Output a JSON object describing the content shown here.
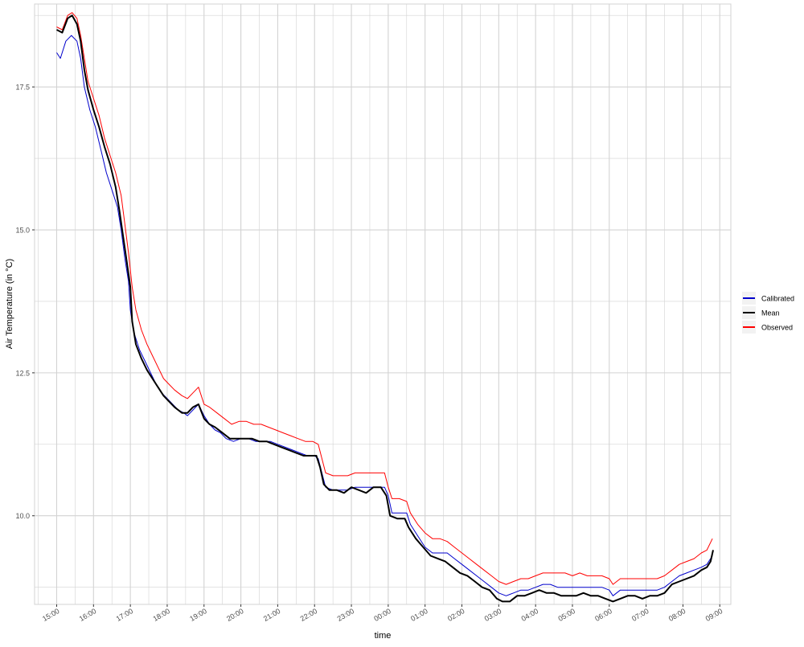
{
  "chart_data": {
    "type": "line",
    "title": "",
    "xlabel": "time",
    "ylabel": "Air Temperature (in °C)",
    "x_ticks": [
      "15:00",
      "16:00",
      "17:00",
      "18:00",
      "19:00",
      "20:00",
      "21:00",
      "22:00",
      "23:00",
      "00:00",
      "01:00",
      "02:00",
      "03:00",
      "04:00",
      "05:00",
      "06:00",
      "07:00",
      "08:00",
      "09:00"
    ],
    "x_range_hours": [
      -0.6,
      18.3
    ],
    "y_ticks": [
      10.0,
      12.5,
      15.0,
      17.5
    ],
    "y_tick_labels": [
      "10.0",
      "12.5",
      "15.0",
      "17.5"
    ],
    "ylim": [
      8.45,
      18.95
    ],
    "grid": true,
    "legend_position": "right",
    "colors": {
      "Calibrated": "#0000cc",
      "Mean": "#000000",
      "Observed": "#ff0000",
      "grid": "#d3d3d3",
      "axis_text": "#4d4d4d"
    },
    "series": [
      {
        "name": "Calibrated",
        "color": "#0000cc",
        "points": [
          [
            0.0,
            18.1
          ],
          [
            0.1,
            18.0
          ],
          [
            0.25,
            18.3
          ],
          [
            0.4,
            18.4
          ],
          [
            0.55,
            18.3
          ],
          [
            0.65,
            18.0
          ],
          [
            0.75,
            17.5
          ],
          [
            0.9,
            17.1
          ],
          [
            1.05,
            16.8
          ],
          [
            1.2,
            16.4
          ],
          [
            1.35,
            16.0
          ],
          [
            1.5,
            15.7
          ],
          [
            1.65,
            15.4
          ],
          [
            1.75,
            15.0
          ],
          [
            1.85,
            14.5
          ],
          [
            1.95,
            14.1
          ],
          [
            2.0,
            13.6
          ],
          [
            2.1,
            13.2
          ],
          [
            2.25,
            12.9
          ],
          [
            2.4,
            12.7
          ],
          [
            2.55,
            12.5
          ],
          [
            2.7,
            12.3
          ],
          [
            2.85,
            12.15
          ],
          [
            3.0,
            12.05
          ],
          [
            3.15,
            11.95
          ],
          [
            3.3,
            11.85
          ],
          [
            3.45,
            11.8
          ],
          [
            3.55,
            11.75
          ],
          [
            3.7,
            11.85
          ],
          [
            3.85,
            11.95
          ],
          [
            4.0,
            11.75
          ],
          [
            4.15,
            11.6
          ],
          [
            4.3,
            11.5
          ],
          [
            4.45,
            11.45
          ],
          [
            4.6,
            11.35
          ],
          [
            4.8,
            11.3
          ],
          [
            5.0,
            11.35
          ],
          [
            5.2,
            11.35
          ],
          [
            5.4,
            11.3
          ],
          [
            5.6,
            11.3
          ],
          [
            5.8,
            11.3
          ],
          [
            6.0,
            11.25
          ],
          [
            6.2,
            11.2
          ],
          [
            6.4,
            11.15
          ],
          [
            6.6,
            11.1
          ],
          [
            6.8,
            11.05
          ],
          [
            7.0,
            11.05
          ],
          [
            7.1,
            11.0
          ],
          [
            7.2,
            10.75
          ],
          [
            7.3,
            10.5
          ],
          [
            7.5,
            10.45
          ],
          [
            7.7,
            10.45
          ],
          [
            7.9,
            10.45
          ],
          [
            8.1,
            10.5
          ],
          [
            8.3,
            10.5
          ],
          [
            8.5,
            10.5
          ],
          [
            8.7,
            10.5
          ],
          [
            8.9,
            10.5
          ],
          [
            9.0,
            10.35
          ],
          [
            9.1,
            10.05
          ],
          [
            9.3,
            10.05
          ],
          [
            9.5,
            10.05
          ],
          [
            9.6,
            9.85
          ],
          [
            9.8,
            9.65
          ],
          [
            10.0,
            9.45
          ],
          [
            10.2,
            9.35
          ],
          [
            10.4,
            9.35
          ],
          [
            10.6,
            9.35
          ],
          [
            10.8,
            9.25
          ],
          [
            11.0,
            9.15
          ],
          [
            11.2,
            9.05
          ],
          [
            11.4,
            8.95
          ],
          [
            11.6,
            8.85
          ],
          [
            11.8,
            8.75
          ],
          [
            12.0,
            8.65
          ],
          [
            12.2,
            8.6
          ],
          [
            12.4,
            8.65
          ],
          [
            12.6,
            8.7
          ],
          [
            12.8,
            8.7
          ],
          [
            13.0,
            8.75
          ],
          [
            13.2,
            8.8
          ],
          [
            13.4,
            8.8
          ],
          [
            13.6,
            8.75
          ],
          [
            13.8,
            8.75
          ],
          [
            14.0,
            8.75
          ],
          [
            14.2,
            8.75
          ],
          [
            14.4,
            8.75
          ],
          [
            14.6,
            8.75
          ],
          [
            14.8,
            8.75
          ],
          [
            15.0,
            8.7
          ],
          [
            15.1,
            8.6
          ],
          [
            15.3,
            8.7
          ],
          [
            15.5,
            8.7
          ],
          [
            15.7,
            8.7
          ],
          [
            15.9,
            8.7
          ],
          [
            16.1,
            8.7
          ],
          [
            16.3,
            8.7
          ],
          [
            16.5,
            8.75
          ],
          [
            16.7,
            8.85
          ],
          [
            16.9,
            8.95
          ],
          [
            17.1,
            9.0
          ],
          [
            17.3,
            9.05
          ],
          [
            17.5,
            9.1
          ],
          [
            17.65,
            9.15
          ],
          [
            17.8,
            9.3
          ]
        ]
      },
      {
        "name": "Mean",
        "color": "#000000",
        "points": [
          [
            0.0,
            18.5
          ],
          [
            0.15,
            18.45
          ],
          [
            0.3,
            18.7
          ],
          [
            0.42,
            18.75
          ],
          [
            0.55,
            18.6
          ],
          [
            0.65,
            18.3
          ],
          [
            0.75,
            17.8
          ],
          [
            0.85,
            17.45
          ],
          [
            1.0,
            17.1
          ],
          [
            1.15,
            16.8
          ],
          [
            1.3,
            16.45
          ],
          [
            1.45,
            16.15
          ],
          [
            1.6,
            15.75
          ],
          [
            1.7,
            15.35
          ],
          [
            1.8,
            14.9
          ],
          [
            1.9,
            14.45
          ],
          [
            2.0,
            14.0
          ],
          [
            2.05,
            13.4
          ],
          [
            2.15,
            13.0
          ],
          [
            2.3,
            12.75
          ],
          [
            2.45,
            12.55
          ],
          [
            2.6,
            12.4
          ],
          [
            2.75,
            12.25
          ],
          [
            2.9,
            12.1
          ],
          [
            3.05,
            12.0
          ],
          [
            3.2,
            11.9
          ],
          [
            3.4,
            11.8
          ],
          [
            3.55,
            11.8
          ],
          [
            3.7,
            11.9
          ],
          [
            3.85,
            11.95
          ],
          [
            4.0,
            11.7
          ],
          [
            4.15,
            11.6
          ],
          [
            4.3,
            11.55
          ],
          [
            4.5,
            11.45
          ],
          [
            4.7,
            11.35
          ],
          [
            4.9,
            11.35
          ],
          [
            5.1,
            11.35
          ],
          [
            5.3,
            11.35
          ],
          [
            5.5,
            11.3
          ],
          [
            5.7,
            11.3
          ],
          [
            5.9,
            11.25
          ],
          [
            6.1,
            11.2
          ],
          [
            6.3,
            11.15
          ],
          [
            6.5,
            11.1
          ],
          [
            6.7,
            11.05
          ],
          [
            6.9,
            11.05
          ],
          [
            7.05,
            11.05
          ],
          [
            7.15,
            10.85
          ],
          [
            7.25,
            10.55
          ],
          [
            7.4,
            10.45
          ],
          [
            7.6,
            10.45
          ],
          [
            7.8,
            10.4
          ],
          [
            8.0,
            10.5
          ],
          [
            8.2,
            10.45
          ],
          [
            8.4,
            10.4
          ],
          [
            8.6,
            10.5
          ],
          [
            8.8,
            10.5
          ],
          [
            8.95,
            10.35
          ],
          [
            9.05,
            10.0
          ],
          [
            9.25,
            9.95
          ],
          [
            9.45,
            9.95
          ],
          [
            9.55,
            9.8
          ],
          [
            9.75,
            9.6
          ],
          [
            9.95,
            9.45
          ],
          [
            10.15,
            9.3
          ],
          [
            10.35,
            9.25
          ],
          [
            10.55,
            9.2
          ],
          [
            10.75,
            9.1
          ],
          [
            10.95,
            9.0
          ],
          [
            11.15,
            8.95
          ],
          [
            11.35,
            8.85
          ],
          [
            11.55,
            8.75
          ],
          [
            11.75,
            8.7
          ],
          [
            11.95,
            8.55
          ],
          [
            12.1,
            8.5
          ],
          [
            12.3,
            8.5
          ],
          [
            12.5,
            8.6
          ],
          [
            12.7,
            8.6
          ],
          [
            12.9,
            8.65
          ],
          [
            13.1,
            8.7
          ],
          [
            13.3,
            8.65
          ],
          [
            13.5,
            8.65
          ],
          [
            13.7,
            8.6
          ],
          [
            13.9,
            8.6
          ],
          [
            14.1,
            8.6
          ],
          [
            14.3,
            8.65
          ],
          [
            14.5,
            8.6
          ],
          [
            14.7,
            8.6
          ],
          [
            14.9,
            8.55
          ],
          [
            15.1,
            8.5
          ],
          [
            15.3,
            8.55
          ],
          [
            15.5,
            8.6
          ],
          [
            15.7,
            8.6
          ],
          [
            15.9,
            8.55
          ],
          [
            16.1,
            8.6
          ],
          [
            16.3,
            8.6
          ],
          [
            16.5,
            8.65
          ],
          [
            16.7,
            8.8
          ],
          [
            16.9,
            8.85
          ],
          [
            17.1,
            8.9
          ],
          [
            17.3,
            8.95
          ],
          [
            17.5,
            9.05
          ],
          [
            17.65,
            9.1
          ],
          [
            17.75,
            9.2
          ],
          [
            17.82,
            9.4
          ]
        ]
      },
      {
        "name": "Observed",
        "color": "#ff0000",
        "points": [
          [
            0.0,
            18.55
          ],
          [
            0.15,
            18.5
          ],
          [
            0.3,
            18.75
          ],
          [
            0.42,
            18.8
          ],
          [
            0.55,
            18.7
          ],
          [
            0.65,
            18.4
          ],
          [
            0.75,
            18.0
          ],
          [
            0.85,
            17.6
          ],
          [
            1.0,
            17.3
          ],
          [
            1.15,
            17.0
          ],
          [
            1.3,
            16.6
          ],
          [
            1.45,
            16.3
          ],
          [
            1.6,
            16.0
          ],
          [
            1.75,
            15.6
          ],
          [
            1.85,
            15.1
          ],
          [
            1.95,
            14.6
          ],
          [
            2.05,
            14.0
          ],
          [
            2.15,
            13.6
          ],
          [
            2.3,
            13.25
          ],
          [
            2.45,
            13.0
          ],
          [
            2.6,
            12.8
          ],
          [
            2.75,
            12.6
          ],
          [
            2.9,
            12.4
          ],
          [
            3.05,
            12.3
          ],
          [
            3.2,
            12.2
          ],
          [
            3.4,
            12.1
          ],
          [
            3.55,
            12.05
          ],
          [
            3.7,
            12.15
          ],
          [
            3.85,
            12.25
          ],
          [
            4.0,
            11.95
          ],
          [
            4.15,
            11.9
          ],
          [
            4.35,
            11.8
          ],
          [
            4.55,
            11.7
          ],
          [
            4.75,
            11.6
          ],
          [
            4.95,
            11.65
          ],
          [
            5.15,
            11.65
          ],
          [
            5.35,
            11.6
          ],
          [
            5.55,
            11.6
          ],
          [
            5.75,
            11.55
          ],
          [
            5.95,
            11.5
          ],
          [
            6.15,
            11.45
          ],
          [
            6.35,
            11.4
          ],
          [
            6.55,
            11.35
          ],
          [
            6.75,
            11.3
          ],
          [
            6.95,
            11.3
          ],
          [
            7.1,
            11.25
          ],
          [
            7.2,
            11.0
          ],
          [
            7.3,
            10.75
          ],
          [
            7.5,
            10.7
          ],
          [
            7.7,
            10.7
          ],
          [
            7.9,
            10.7
          ],
          [
            8.1,
            10.75
          ],
          [
            8.3,
            10.75
          ],
          [
            8.5,
            10.75
          ],
          [
            8.7,
            10.75
          ],
          [
            8.9,
            10.75
          ],
          [
            9.0,
            10.5
          ],
          [
            9.1,
            10.3
          ],
          [
            9.3,
            10.3
          ],
          [
            9.5,
            10.25
          ],
          [
            9.6,
            10.05
          ],
          [
            9.8,
            9.85
          ],
          [
            10.0,
            9.7
          ],
          [
            10.2,
            9.6
          ],
          [
            10.4,
            9.6
          ],
          [
            10.6,
            9.55
          ],
          [
            10.8,
            9.45
          ],
          [
            11.0,
            9.35
          ],
          [
            11.2,
            9.25
          ],
          [
            11.4,
            9.15
          ],
          [
            11.6,
            9.05
          ],
          [
            11.8,
            8.95
          ],
          [
            12.0,
            8.85
          ],
          [
            12.2,
            8.8
          ],
          [
            12.4,
            8.85
          ],
          [
            12.6,
            8.9
          ],
          [
            12.8,
            8.9
          ],
          [
            13.0,
            8.95
          ],
          [
            13.2,
            9.0
          ],
          [
            13.4,
            9.0
          ],
          [
            13.6,
            9.0
          ],
          [
            13.8,
            9.0
          ],
          [
            14.0,
            8.95
          ],
          [
            14.2,
            9.0
          ],
          [
            14.4,
            8.95
          ],
          [
            14.6,
            8.95
          ],
          [
            14.8,
            8.95
          ],
          [
            15.0,
            8.9
          ],
          [
            15.1,
            8.8
          ],
          [
            15.3,
            8.9
          ],
          [
            15.5,
            8.9
          ],
          [
            15.7,
            8.9
          ],
          [
            15.9,
            8.9
          ],
          [
            16.1,
            8.9
          ],
          [
            16.3,
            8.9
          ],
          [
            16.5,
            8.95
          ],
          [
            16.7,
            9.05
          ],
          [
            16.9,
            9.15
          ],
          [
            17.1,
            9.2
          ],
          [
            17.3,
            9.25
          ],
          [
            17.5,
            9.35
          ],
          [
            17.65,
            9.4
          ],
          [
            17.8,
            9.6
          ]
        ]
      }
    ]
  }
}
